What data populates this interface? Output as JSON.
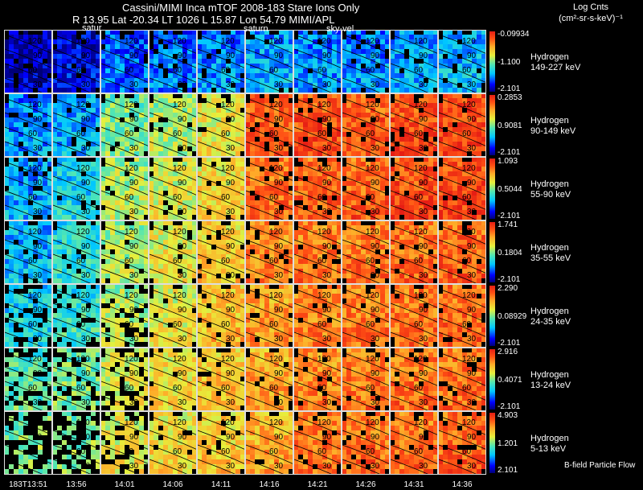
{
  "header": {
    "title": "Cassini/MIMI Inca mTOF  2008-183   Stare   Ions Only",
    "subtitle": "R      13.95 Lat -20.34 LT 1026 L      15.87 Lon      54.79  MIMI/APL",
    "legend_title": "Log Cnts",
    "legend_units": "(cm²-sr-s-keV)⁻¹",
    "footer_note": "B-field Particle Flow"
  },
  "overlay_labels": {
    "saturn_1": "satur",
    "saturn_2": "saturn",
    "sky_vel": "sky-vel"
  },
  "chart_data": {
    "type": "heatmap",
    "title": "Cassini/MIMI Inca mTOF  2008-183   Stare   Ions Only",
    "times": [
      "183T13:51",
      "13:56",
      "14:01",
      "14:06",
      "14:11",
      "14:16",
      "14:21",
      "14:26",
      "14:31",
      "14:36"
    ],
    "pitch_contours": [
      "30",
      "60",
      "90",
      "120"
    ],
    "channels": [
      {
        "species": "Hydrogen",
        "energy": "149-227 keV",
        "cb_max": "-0.09934",
        "cb_mid": "-1.100",
        "cb_min": "-2.101",
        "level": [
          0.05,
          0.1,
          0.2,
          0.22,
          0.25,
          0.28,
          0.25,
          0.25,
          0.28,
          0.3
        ]
      },
      {
        "species": "Hydrogen",
        "energy": "90-149 keV",
        "cb_max": "0.2853",
        "cb_mid": "0.9081",
        "cb_min": "-2.101",
        "level": [
          0.25,
          0.28,
          0.5,
          0.55,
          0.62,
          0.88,
          0.9,
          0.88,
          0.9,
          0.92
        ]
      },
      {
        "species": "Hydrogen",
        "energy": "55-90 keV",
        "cb_max": "1.093",
        "cb_mid": "0.5044",
        "cb_min": "-2.101",
        "level": [
          0.28,
          0.35,
          0.55,
          0.6,
          0.65,
          0.84,
          0.86,
          0.86,
          0.9,
          0.92
        ]
      },
      {
        "species": "Hydrogen",
        "energy": "35-55 keV",
        "cb_max": "1.741",
        "cb_mid": "0.1804",
        "cb_min": "-2.101",
        "level": [
          0.3,
          0.38,
          0.55,
          0.62,
          0.68,
          0.8,
          0.82,
          0.83,
          0.85,
          0.86
        ]
      },
      {
        "species": "Hydrogen",
        "energy": "24-35 keV",
        "cb_max": "2.290",
        "cb_mid": "0.08929",
        "cb_min": "-2.101",
        "level": [
          0.35,
          0.4,
          0.55,
          0.62,
          0.7,
          0.76,
          0.8,
          0.82,
          0.83,
          0.85
        ]
      },
      {
        "species": "Hydrogen",
        "energy": "13-24 keV",
        "cb_max": "2.916",
        "cb_mid": "0.4071",
        "cb_min": "-2.101",
        "level": [
          0.45,
          0.48,
          0.6,
          0.65,
          0.7,
          0.75,
          0.8,
          0.82,
          0.83,
          0.84
        ]
      },
      {
        "species": "Hydrogen",
        "energy": "5-13 keV",
        "cb_max": "4.903",
        "cb_mid": "1.201",
        "cb_min": "2.101",
        "level": [
          0.5,
          0.5,
          0.62,
          0.65,
          0.68,
          0.74,
          0.82,
          0.84,
          0.84,
          0.86
        ]
      }
    ]
  }
}
